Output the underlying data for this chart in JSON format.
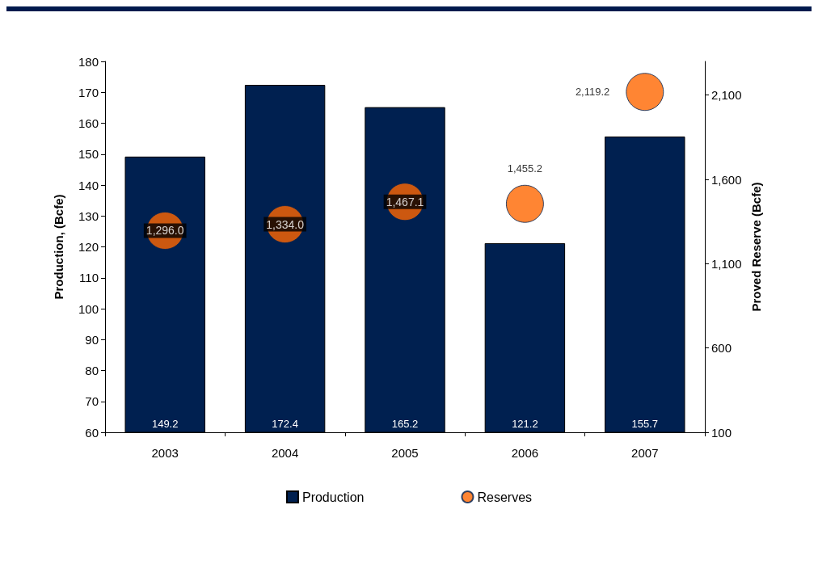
{
  "chart_data": {
    "type": "bar",
    "categories": [
      "2003",
      "2004",
      "2005",
      "2006",
      "2007"
    ],
    "series": [
      {
        "name": "Production",
        "color": "#002050",
        "values": [
          149.2,
          172.4,
          165.2,
          121.2,
          155.7
        ]
      },
      {
        "name": "Reserves",
        "type": "scatter",
        "axis": "y2",
        "color": "#ff6600",
        "values": [
          1296.0,
          1334.0,
          1467.1,
          1455.2,
          2119.2
        ],
        "value_labels": [
          "1,296.0",
          "1,334.0",
          "1,467.1",
          "1,455.2",
          "2,119.2"
        ]
      }
    ],
    "ylabel": "Production, (Bcfe)",
    "y2label": "Proved Reserve (Bcfe)",
    "ylim": [
      60,
      180
    ],
    "yticks": [
      60,
      70,
      80,
      90,
      100,
      110,
      120,
      130,
      140,
      150,
      160,
      170,
      180
    ],
    "y2lim": [
      100,
      2300
    ],
    "y2ticks": [
      100,
      600,
      {
        "value": 1100,
        "label": "1,100"
      },
      {
        "value": 1600,
        "label": "1,600"
      },
      {
        "value": 2100,
        "label": "2,100"
      }
    ],
    "data_labels": true,
    "grid": false,
    "legend": "bottom",
    "marker": "circle"
  }
}
